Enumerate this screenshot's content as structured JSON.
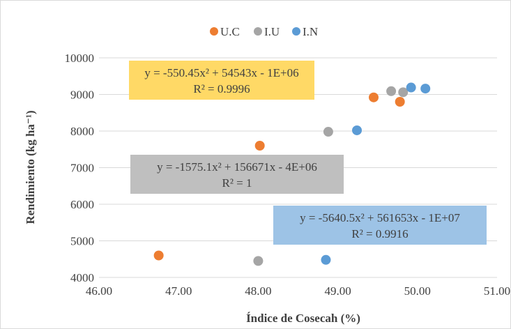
{
  "chart_data": {
    "type": "scatter",
    "title": "",
    "xlabel": "Índice de Cosecah (%)",
    "ylabel": "Rendimiento (kg ha⁻¹)",
    "xlim": [
      46,
      51
    ],
    "ylim": [
      4000,
      10000
    ],
    "x_ticks": [
      "46.00",
      "47.00",
      "48.00",
      "49.00",
      "50.00",
      "51.00"
    ],
    "y_ticks": [
      "4000",
      "5000",
      "6000",
      "7000",
      "8000",
      "9000",
      "10000"
    ],
    "grid": "horizontal",
    "legend_position": "top-center",
    "series": [
      {
        "name": "U.C",
        "color": "#ED7D31",
        "points": [
          [
            46.75,
            4600
          ],
          [
            48.02,
            7600
          ],
          [
            49.45,
            8920
          ],
          [
            49.78,
            8800
          ]
        ],
        "trendline": {
          "coefficients": [
            -550.45,
            54543,
            -1000000
          ],
          "x_range": [
            46.75,
            49.8
          ],
          "equation_text": "y = -550.45x² + 54543x - 1E+06",
          "r2_text": "R² = 0.9996",
          "box_color": "#FFD966"
        }
      },
      {
        "name": "I.U",
        "color": "#A5A5A5",
        "points": [
          [
            48.0,
            4450
          ],
          [
            48.88,
            7980
          ],
          [
            49.67,
            9090
          ],
          [
            49.82,
            9060
          ]
        ],
        "trendline": {
          "coefficients": [
            -1575.1,
            156671,
            -4000000
          ],
          "x_range": [
            48.0,
            49.85
          ],
          "equation_text": "y = -1575.1x² + 156671x - 4E+06",
          "r2_text": "R² = 1",
          "box_color": "#BFBFBF"
        }
      },
      {
        "name": "I.N",
        "color": "#5B9BD5",
        "points": [
          [
            48.85,
            4480
          ],
          [
            49.24,
            8020
          ],
          [
            49.92,
            9190
          ],
          [
            50.1,
            9160
          ]
        ],
        "trendline": {
          "coefficients": [
            -5640.5,
            561653,
            -10000000
          ],
          "x_range": [
            48.85,
            50.1
          ],
          "equation_text": "y = -5640.5x² + 561653x - 1E+07",
          "r2_text": "R² = 0.9916",
          "box_color": "#9DC3E6"
        }
      }
    ]
  }
}
